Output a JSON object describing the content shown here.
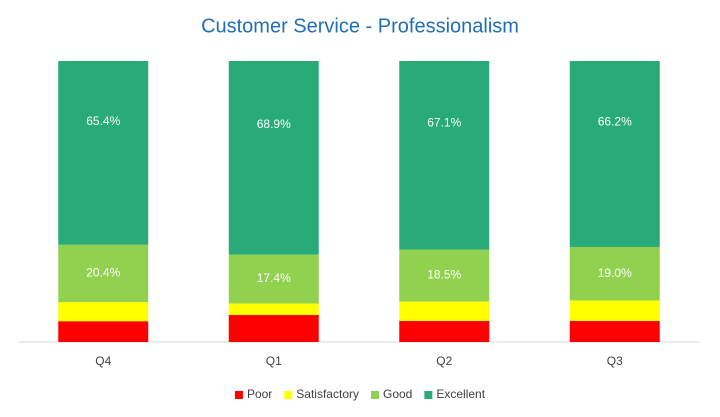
{
  "chart_data": {
    "type": "stacked-bar",
    "title": "Customer Service - Professionalism",
    "categories": [
      "Q4",
      "Q1",
      "Q2",
      "Q3"
    ],
    "ylim": [
      0,
      100
    ],
    "legend": "bottom",
    "series": [
      {
        "name": "Poor",
        "color": "#ff0000",
        "values": [
          7.4,
          9.6,
          7.5,
          7.5
        ]
      },
      {
        "name": "Satisfactory",
        "color": "#ffff00",
        "values": [
          6.8,
          4.1,
          6.9,
          7.3
        ]
      },
      {
        "name": "Good",
        "color": "#92d050",
        "values": [
          20.4,
          17.4,
          18.5,
          19.0
        ],
        "value_labels": [
          "20.4%",
          "17.4%",
          "18.5%",
          "19.0%"
        ]
      },
      {
        "name": "Excellent",
        "color": "#28ab78",
        "values": [
          65.4,
          68.9,
          67.1,
          66.2
        ],
        "value_labels": [
          "65.4%",
          "68.9%",
          "67.1%",
          "66.2%"
        ]
      }
    ]
  }
}
